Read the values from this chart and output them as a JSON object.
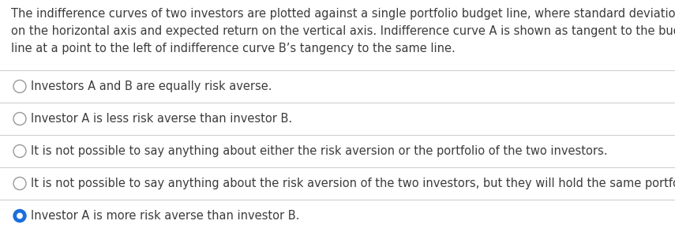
{
  "question_text": "The indifference curves of two investors are plotted against a single portfolio budget line, where standard deviation is\non the horizontal axis and expected return on the vertical axis. Indifference curve A is shown as tangent to the budget\nline at a point to the left of indifference curve B’s tangency to the same line.",
  "options": [
    {
      "text": "Investors A and B are equally risk averse.",
      "selected": false
    },
    {
      "text": "Investor A is less risk averse than investor B.",
      "selected": false
    },
    {
      "text": "It is not possible to say anything about either the risk aversion or the portfolio of the two investors.",
      "selected": false
    },
    {
      "text": "It is not possible to say anything about the risk aversion of the two investors, but they will hold the same portfolio.",
      "selected": false
    },
    {
      "text": "Investor A is more risk averse than investor B.",
      "selected": true
    }
  ],
  "bg_color": "#ffffff",
  "text_color": "#3c3c3c",
  "question_fontsize": 10.5,
  "option_fontsize": 10.5,
  "line_color": "#d0d0d0",
  "circle_color_empty": "#999999",
  "circle_color_filled": "#1a6fdb",
  "fig_width": 8.55,
  "fig_height": 2.94,
  "dpi": 100
}
